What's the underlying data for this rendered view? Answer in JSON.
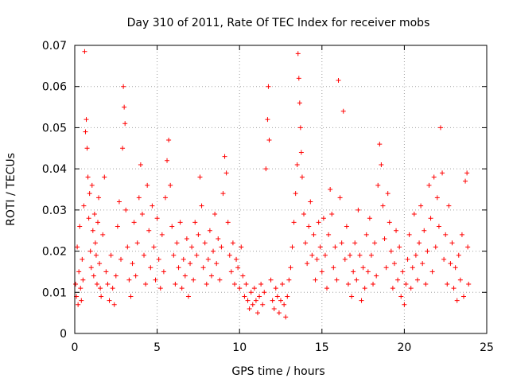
{
  "chart_data": {
    "type": "scatter",
    "title": "Day 310 of 2011, Rate Of TEC Index for receiver mobs",
    "xlabel": "GPS time / hours",
    "ylabel": "ROTI / TECUs",
    "xlim": [
      0,
      25
    ],
    "ylim": [
      0,
      0.07
    ],
    "xticks": [
      0,
      5,
      10,
      15,
      20,
      25
    ],
    "xtick_labels": [
      "0",
      "5",
      "10",
      "15",
      "20",
      "25"
    ],
    "yticks": [
      0,
      0.01,
      0.02,
      0.03,
      0.04,
      0.05,
      0.06,
      0.07
    ],
    "ytick_labels": [
      "0",
      "0.01",
      "0.02",
      "0.03",
      "0.04",
      "0.05",
      "0.06",
      "0.07"
    ],
    "grid": true,
    "marker": "plus",
    "color": "#ff0000",
    "series": [
      {
        "points": [
          [
            0.05,
            0.012
          ],
          [
            0.1,
            0.009
          ],
          [
            0.15,
            0.021
          ],
          [
            0.2,
            0.007
          ],
          [
            0.25,
            0.015
          ],
          [
            0.3,
            0.026
          ],
          [
            0.35,
            0.011
          ],
          [
            0.4,
            0.008
          ],
          [
            0.45,
            0.018
          ],
          [
            0.5,
            0.013
          ],
          [
            0.55,
            0.031
          ],
          [
            0.6,
            0.0685
          ],
          [
            0.65,
            0.049
          ],
          [
            0.7,
            0.052
          ],
          [
            0.75,
            0.045
          ],
          [
            0.8,
            0.038
          ],
          [
            0.85,
            0.028
          ],
          [
            0.9,
            0.034
          ],
          [
            0.95,
            0.02
          ],
          [
            1.0,
            0.016
          ],
          [
            1.05,
            0.036
          ],
          [
            1.1,
            0.025
          ],
          [
            1.15,
            0.014
          ],
          [
            1.2,
            0.029
          ],
          [
            1.25,
            0.022
          ],
          [
            1.3,
            0.019
          ],
          [
            1.35,
            0.012
          ],
          [
            1.4,
            0.027
          ],
          [
            1.45,
            0.033
          ],
          [
            1.5,
            0.017
          ],
          [
            1.55,
            0.011
          ],
          [
            1.6,
            0.009
          ],
          [
            1.7,
            0.024
          ],
          [
            1.8,
            0.038
          ],
          [
            1.9,
            0.015
          ],
          [
            2.0,
            0.012
          ],
          [
            2.1,
            0.008
          ],
          [
            2.2,
            0.019
          ],
          [
            2.3,
            0.011
          ],
          [
            2.4,
            0.007
          ],
          [
            2.5,
            0.014
          ],
          [
            2.6,
            0.026
          ],
          [
            2.7,
            0.032
          ],
          [
            2.8,
            0.018
          ],
          [
            2.9,
            0.045
          ],
          [
            2.95,
            0.06
          ],
          [
            3.0,
            0.055
          ],
          [
            3.05,
            0.051
          ],
          [
            3.1,
            0.03
          ],
          [
            3.2,
            0.021
          ],
          [
            3.3,
            0.013
          ],
          [
            3.4,
            0.009
          ],
          [
            3.5,
            0.017
          ],
          [
            3.6,
            0.027
          ],
          [
            3.7,
            0.014
          ],
          [
            3.8,
            0.022
          ],
          [
            3.9,
            0.033
          ],
          [
            4.0,
            0.041
          ],
          [
            4.1,
            0.029
          ],
          [
            4.2,
            0.019
          ],
          [
            4.3,
            0.012
          ],
          [
            4.4,
            0.036
          ],
          [
            4.5,
            0.025
          ],
          [
            4.6,
            0.016
          ],
          [
            4.7,
            0.031
          ],
          [
            4.8,
            0.021
          ],
          [
            4.9,
            0.013
          ],
          [
            5.0,
            0.028
          ],
          [
            5.1,
            0.018
          ],
          [
            5.2,
            0.011
          ],
          [
            5.3,
            0.024
          ],
          [
            5.4,
            0.015
          ],
          [
            5.5,
            0.033
          ],
          [
            5.6,
            0.042
          ],
          [
            5.7,
            0.047
          ],
          [
            5.8,
            0.036
          ],
          [
            5.9,
            0.026
          ],
          [
            6.0,
            0.019
          ],
          [
            6.1,
            0.012
          ],
          [
            6.2,
            0.022
          ],
          [
            6.3,
            0.016
          ],
          [
            6.4,
            0.027
          ],
          [
            6.5,
            0.011
          ],
          [
            6.6,
            0.018
          ],
          [
            6.7,
            0.014
          ],
          [
            6.8,
            0.023
          ],
          [
            6.9,
            0.009
          ],
          [
            7.0,
            0.017
          ],
          [
            7.1,
            0.021
          ],
          [
            7.2,
            0.013
          ],
          [
            7.3,
            0.027
          ],
          [
            7.4,
            0.019
          ],
          [
            7.5,
            0.024
          ],
          [
            7.6,
            0.038
          ],
          [
            7.7,
            0.031
          ],
          [
            7.8,
            0.016
          ],
          [
            7.9,
            0.022
          ],
          [
            8.0,
            0.012
          ],
          [
            8.1,
            0.018
          ],
          [
            8.2,
            0.025
          ],
          [
            8.3,
            0.014
          ],
          [
            8.4,
            0.02
          ],
          [
            8.5,
            0.029
          ],
          [
            8.6,
            0.017
          ],
          [
            8.7,
            0.023
          ],
          [
            8.8,
            0.013
          ],
          [
            8.9,
            0.021
          ],
          [
            9.0,
            0.034
          ],
          [
            9.1,
            0.043
          ],
          [
            9.2,
            0.039
          ],
          [
            9.3,
            0.027
          ],
          [
            9.4,
            0.019
          ],
          [
            9.5,
            0.015
          ],
          [
            9.6,
            0.022
          ],
          [
            9.7,
            0.012
          ],
          [
            9.8,
            0.018
          ],
          [
            9.9,
            0.016
          ],
          [
            10.0,
            0.011
          ],
          [
            10.1,
            0.021
          ],
          [
            10.2,
            0.014
          ],
          [
            10.3,
            0.009
          ],
          [
            10.4,
            0.012
          ],
          [
            10.5,
            0.008
          ],
          [
            10.6,
            0.006
          ],
          [
            10.7,
            0.01
          ],
          [
            10.8,
            0.007
          ],
          [
            10.9,
            0.011
          ],
          [
            11.0,
            0.008
          ],
          [
            11.1,
            0.005
          ],
          [
            11.2,
            0.009
          ],
          [
            11.3,
            0.012
          ],
          [
            11.4,
            0.007
          ],
          [
            11.5,
            0.01
          ],
          [
            11.6,
            0.04
          ],
          [
            11.7,
            0.052
          ],
          [
            11.75,
            0.06
          ],
          [
            11.8,
            0.047
          ],
          [
            11.9,
            0.013
          ],
          [
            12.0,
            0.008
          ],
          [
            12.1,
            0.006
          ],
          [
            12.2,
            0.011
          ],
          [
            12.3,
            0.009
          ],
          [
            12.4,
            0.005
          ],
          [
            12.5,
            0.008
          ],
          [
            12.6,
            0.012
          ],
          [
            12.7,
            0.007
          ],
          [
            12.8,
            0.004
          ],
          [
            12.9,
            0.009
          ],
          [
            13.0,
            0.013
          ],
          [
            13.1,
            0.016
          ],
          [
            13.2,
            0.021
          ],
          [
            13.3,
            0.027
          ],
          [
            13.4,
            0.034
          ],
          [
            13.5,
            0.041
          ],
          [
            13.55,
            0.068
          ],
          [
            13.6,
            0.062
          ],
          [
            13.65,
            0.056
          ],
          [
            13.7,
            0.05
          ],
          [
            13.75,
            0.044
          ],
          [
            13.8,
            0.038
          ],
          [
            13.9,
            0.029
          ],
          [
            14.0,
            0.022
          ],
          [
            14.1,
            0.017
          ],
          [
            14.2,
            0.026
          ],
          [
            14.3,
            0.032
          ],
          [
            14.4,
            0.019
          ],
          [
            14.5,
            0.024
          ],
          [
            14.6,
            0.013
          ],
          [
            14.7,
            0.018
          ],
          [
            14.8,
            0.027
          ],
          [
            14.9,
            0.021
          ],
          [
            15.0,
            0.015
          ],
          [
            15.1,
            0.028
          ],
          [
            15.2,
            0.019
          ],
          [
            15.3,
            0.011
          ],
          [
            15.4,
            0.024
          ],
          [
            15.5,
            0.035
          ],
          [
            15.6,
            0.029
          ],
          [
            15.7,
            0.016
          ],
          [
            15.8,
            0.021
          ],
          [
            15.9,
            0.013
          ],
          [
            16.0,
            0.0615
          ],
          [
            16.1,
            0.033
          ],
          [
            16.2,
            0.022
          ],
          [
            16.3,
            0.054
          ],
          [
            16.4,
            0.018
          ],
          [
            16.5,
            0.026
          ],
          [
            16.6,
            0.012
          ],
          [
            16.7,
            0.019
          ],
          [
            16.8,
            0.009
          ],
          [
            16.9,
            0.015
          ],
          [
            17.0,
            0.022
          ],
          [
            17.1,
            0.013
          ],
          [
            17.2,
            0.03
          ],
          [
            17.3,
            0.019
          ],
          [
            17.4,
            0.008
          ],
          [
            17.5,
            0.016
          ],
          [
            17.6,
            0.011
          ],
          [
            17.7,
            0.024
          ],
          [
            17.8,
            0.015
          ],
          [
            17.9,
            0.028
          ],
          [
            18.0,
            0.019
          ],
          [
            18.1,
            0.012
          ],
          [
            18.2,
            0.022
          ],
          [
            18.3,
            0.014
          ],
          [
            18.4,
            0.036
          ],
          [
            18.5,
            0.046
          ],
          [
            18.6,
            0.041
          ],
          [
            18.7,
            0.031
          ],
          [
            18.8,
            0.023
          ],
          [
            18.9,
            0.016
          ],
          [
            19.0,
            0.034
          ],
          [
            19.1,
            0.027
          ],
          [
            19.2,
            0.02
          ],
          [
            19.3,
            0.011
          ],
          [
            19.4,
            0.017
          ],
          [
            19.5,
            0.025
          ],
          [
            19.6,
            0.013
          ],
          [
            19.7,
            0.021
          ],
          [
            19.8,
            0.009
          ],
          [
            19.9,
            0.015
          ],
          [
            20.0,
            0.007
          ],
          [
            20.1,
            0.012
          ],
          [
            20.2,
            0.018
          ],
          [
            20.3,
            0.024
          ],
          [
            20.4,
            0.011
          ],
          [
            20.5,
            0.016
          ],
          [
            20.6,
            0.029
          ],
          [
            20.7,
            0.019
          ],
          [
            20.8,
            0.013
          ],
          [
            20.9,
            0.022
          ],
          [
            21.0,
            0.031
          ],
          [
            21.1,
            0.017
          ],
          [
            21.2,
            0.025
          ],
          [
            21.3,
            0.012
          ],
          [
            21.4,
            0.02
          ],
          [
            21.5,
            0.036
          ],
          [
            21.6,
            0.028
          ],
          [
            21.7,
            0.015
          ],
          [
            21.8,
            0.038
          ],
          [
            21.9,
            0.021
          ],
          [
            22.0,
            0.033
          ],
          [
            22.1,
            0.026
          ],
          [
            22.2,
            0.05
          ],
          [
            22.3,
            0.039
          ],
          [
            22.4,
            0.018
          ],
          [
            22.5,
            0.024
          ],
          [
            22.6,
            0.012
          ],
          [
            22.7,
            0.031
          ],
          [
            22.8,
            0.017
          ],
          [
            22.9,
            0.022
          ],
          [
            23.0,
            0.011
          ],
          [
            23.1,
            0.016
          ],
          [
            23.2,
            0.008
          ],
          [
            23.3,
            0.019
          ],
          [
            23.4,
            0.013
          ],
          [
            23.5,
            0.024
          ],
          [
            23.6,
            0.009
          ],
          [
            23.7,
            0.037
          ],
          [
            23.8,
            0.039
          ],
          [
            23.85,
            0.021
          ],
          [
            23.9,
            0.012
          ]
        ]
      }
    ]
  }
}
